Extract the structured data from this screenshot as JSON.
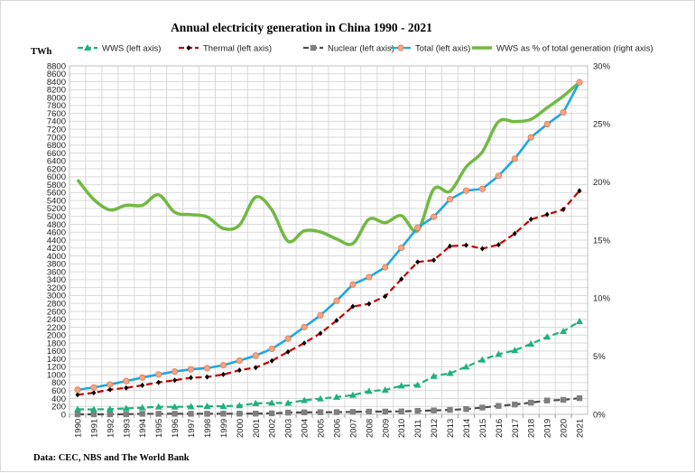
{
  "chart_data": {
    "type": "line",
    "title": "Annual electricity generation in China 1990 - 2021",
    "left_axis_unit": "TWh",
    "source_note": "Data: CEC, NBS and The World Bank",
    "x": [
      "1990",
      "1991",
      "1992",
      "1993",
      "1994",
      "1995",
      "1996",
      "1997",
      "1998",
      "1999",
      "2000",
      "2001",
      "2002",
      "2003",
      "2004",
      "2005",
      "2006",
      "2007",
      "2008",
      "2009",
      "2010",
      "2011",
      "2012",
      "2013",
      "2014",
      "2015",
      "2016",
      "2017",
      "2018",
      "2019",
      "2020",
      "2021"
    ],
    "ylim_left": [
      0,
      8800
    ],
    "ylim_right": [
      0,
      30
    ],
    "left_ticks": [
      0,
      200,
      400,
      600,
      800,
      1000,
      1200,
      1400,
      1600,
      1800,
      2000,
      2200,
      2400,
      2600,
      2800,
      3000,
      3200,
      3400,
      3600,
      3800,
      4000,
      4200,
      4400,
      4600,
      4800,
      5000,
      5200,
      5400,
      5600,
      5800,
      6000,
      6200,
      6400,
      6600,
      6800,
      7000,
      7200,
      7400,
      7600,
      7800,
      8000,
      8200,
      8400,
      8600,
      8800
    ],
    "right_ticks": [
      0,
      5,
      10,
      15,
      20,
      25,
      30
    ],
    "right_tick_suffix": "%",
    "grid": true,
    "legend_position": "top",
    "series": [
      {
        "name": "WWS (left axis)",
        "axis": "left",
        "color": "#1fb080",
        "marker": "triangle",
        "dash": "dashed",
        "values": [
          126,
          125,
          131,
          151,
          167,
          191,
          188,
          196,
          204,
          204,
          222,
          277,
          288,
          284,
          354,
          397,
          435,
          485,
          585,
          615,
          722,
          740,
          964,
          1037,
          1199,
          1377,
          1518,
          1617,
          1778,
          1955,
          2096,
          2348
        ]
      },
      {
        "name": "Thermal (left axis)",
        "axis": "left",
        "color": "#c00000",
        "marker": "diamond",
        "dash": "dashed",
        "values": [
          495,
          544,
          625,
          667,
          733,
          807,
          860,
          925,
          942,
          1005,
          1114,
          1181,
          1352,
          1580,
          1799,
          2047,
          2370,
          2723,
          2790,
          2982,
          3416,
          3848,
          3893,
          4247,
          4273,
          4184,
          4284,
          4566,
          4923,
          5046,
          5174,
          5646
        ]
      },
      {
        "name": "Nuclear (left axis)",
        "axis": "left",
        "color": "#4d4d4d",
        "marker": "square",
        "dash": "dashed",
        "values": [
          0,
          0,
          0,
          2,
          13,
          13,
          14,
          14,
          14,
          15,
          17,
          17,
          25,
          43,
          50,
          53,
          55,
          62,
          68,
          70,
          74,
          87,
          98,
          112,
          132,
          171,
          213,
          248,
          295,
          348,
          366,
          408
        ]
      },
      {
        "name": "Total (left axis)",
        "axis": "left",
        "color": "#1fa7e0",
        "marker": "circle",
        "dash": "solid",
        "values": [
          621,
          678,
          754,
          840,
          928,
          1007,
          1081,
          1136,
          1167,
          1239,
          1356,
          1484,
          1654,
          1911,
          2203,
          2500,
          2866,
          3282,
          3467,
          3715,
          4207,
          4713,
          4987,
          5432,
          5649,
          5694,
          6022,
          6453,
          6995,
          7326,
          7624,
          8386
        ]
      },
      {
        "name": "WWS as % of total generation (right axis)",
        "axis": "right",
        "color": "#72b944",
        "marker": "none",
        "dash": "solid",
        "values": [
          20.2,
          18.5,
          17.6,
          18.0,
          18.0,
          18.9,
          17.4,
          17.2,
          17.0,
          16.0,
          16.3,
          18.7,
          17.6,
          14.9,
          15.8,
          15.7,
          15.1,
          14.7,
          16.8,
          16.5,
          17.1,
          15.8,
          19.4,
          19.2,
          21.3,
          22.6,
          25.2,
          25.2,
          25.4,
          26.4,
          27.4,
          28.6
        ]
      }
    ]
  }
}
